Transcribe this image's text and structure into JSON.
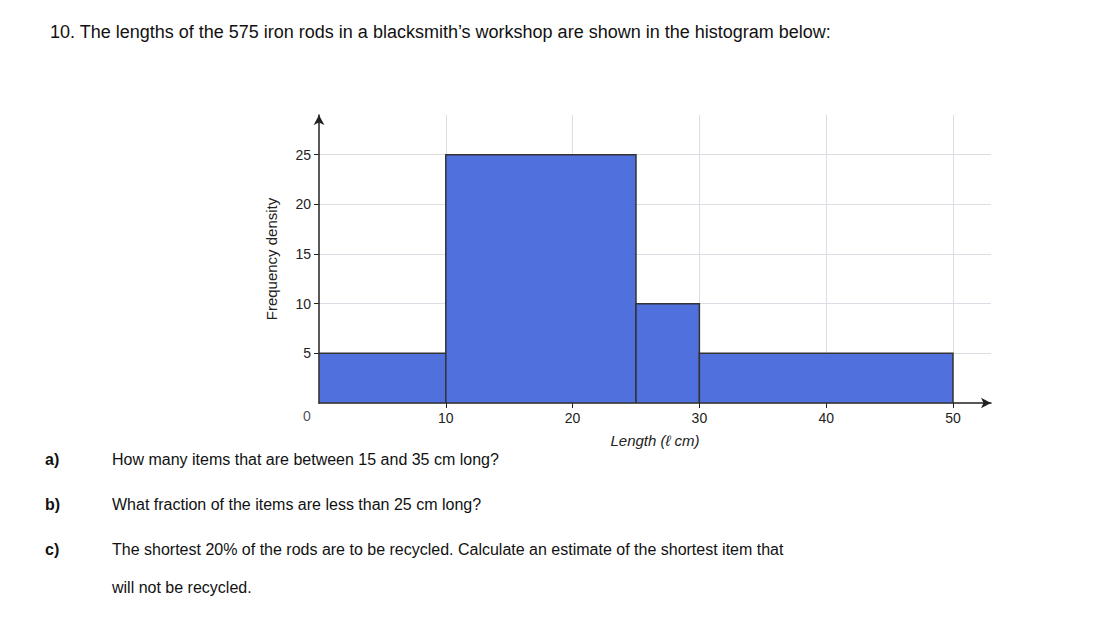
{
  "chart_data": {
    "type": "histogram",
    "title": "10. The lengths of the 575 iron rods in a blacksmith’s workshop are shown in the histogram below:",
    "xlabel": "Length (ℓ cm)",
    "ylabel": "Frequency density",
    "bins": [
      0,
      10,
      25,
      30,
      50
    ],
    "values": [
      5,
      25,
      10,
      5
    ],
    "xlim": [
      0,
      53
    ],
    "ylim": [
      0,
      29
    ],
    "xticks": [
      10,
      20,
      30,
      40,
      50
    ],
    "yticks": [
      5,
      10,
      15,
      20,
      25
    ],
    "grid": true,
    "annotations": [
      {
        "text": "0",
        "x": 0,
        "y": 0
      }
    ],
    "questions": [
      {
        "label": "a)",
        "text": "How many items that are between 15 and 35 cm long?"
      },
      {
        "label": "b)",
        "text": "What fraction of the items are less than 25 cm long?"
      },
      {
        "label": "c)",
        "text": "The shortest 20% of the rods are to be recycled. Calculate an estimate of the shortest item that"
      },
      {
        "text": "will not be recycled."
      }
    ]
  }
}
